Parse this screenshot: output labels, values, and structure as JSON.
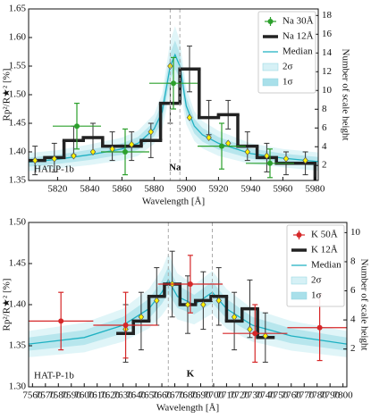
{
  "chart_data": [
    {
      "type": "line",
      "xlabel": "Wavelength [Å]",
      "ylabel": "Rp²/R★² [%]",
      "y2label": "Number of scale height",
      "annotations": [
        "HAT-P-1b",
        "Na"
      ],
      "legend": "upper right",
      "xlim": [
        5802,
        5982
      ],
      "xticks": [
        5820,
        5840,
        5860,
        5880,
        5900,
        5920,
        5940,
        5960,
        5980
      ],
      "ylim": [
        1.35,
        1.65
      ],
      "yticks": [
        1.35,
        {
          "value": 1.4,
          "label": "1.40"
        },
        1.45,
        {
          "value": 1.5,
          "label": "1.50"
        },
        1.55,
        {
          "value": 1.6,
          "label": "1.60"
        },
        1.65
      ],
      "y2lim": [
        0.4,
        18.7
      ],
      "y2ticks": [
        2,
        4,
        6,
        8,
        10,
        12,
        14,
        16,
        18
      ],
      "vlines": [
        5890,
        5896
      ],
      "series": [
        {
          "type": "errorbar",
          "name": "Na 30Å",
          "color": "#2ca02c",
          "x": [
            5832,
            5862,
            5892,
            5922,
            5952
          ],
          "values": [
            1.445,
            1.4,
            1.52,
            1.41,
            1.38
          ],
          "xerr": [
            15,
            15,
            15,
            15,
            15
          ],
          "yerr": [
            0.04,
            0.04,
            0.045,
            0.04,
            0.025
          ]
        },
        {
          "type": "step",
          "name": "Na 12Å",
          "color": "#222222",
          "edges": [
            5800,
            5812,
            5824,
            5836,
            5848,
            5860,
            5872,
            5884,
            5896,
            5908,
            5920,
            5932,
            5944,
            5956,
            5968,
            5980,
            5992
          ],
          "values": [
            1.385,
            1.39,
            1.42,
            1.425,
            1.41,
            1.41,
            1.42,
            1.485,
            1.545,
            1.46,
            1.465,
            1.41,
            1.39,
            1.38,
            1.38,
            1.345
          ],
          "yerr": [
            0.025,
            0.025,
            0.025,
            0.025,
            0.025,
            0.025,
            0.03,
            0.035,
            0.04,
            0.03,
            0.025,
            0.025,
            0.025,
            0.02,
            0.02,
            0.025
          ]
        },
        {
          "type": "line",
          "name": "Median",
          "color": "#1fb1c2",
          "x": [
            5802,
            5820,
            5840,
            5860,
            5870,
            5880,
            5885,
            5890,
            5893,
            5896,
            5900,
            5905,
            5910,
            5920,
            5940,
            5960,
            5982
          ],
          "values": [
            1.382,
            1.387,
            1.395,
            1.405,
            1.415,
            1.44,
            1.47,
            1.55,
            1.57,
            1.55,
            1.48,
            1.445,
            1.43,
            1.415,
            1.397,
            1.389,
            1.383
          ]
        },
        {
          "type": "band",
          "name": "2σ",
          "color": "#d6f1f6",
          "x": [
            5802,
            5820,
            5840,
            5860,
            5870,
            5880,
            5885,
            5890,
            5893,
            5896,
            5900,
            5905,
            5910,
            5920,
            5940,
            5960,
            5982
          ],
          "lower": [
            1.366,
            1.371,
            1.377,
            1.385,
            1.393,
            1.414,
            1.438,
            1.506,
            1.52,
            1.506,
            1.448,
            1.419,
            1.406,
            1.393,
            1.379,
            1.373,
            1.367
          ],
          "upper": [
            1.398,
            1.403,
            1.413,
            1.425,
            1.437,
            1.466,
            1.502,
            1.594,
            1.62,
            1.594,
            1.512,
            1.471,
            1.454,
            1.437,
            1.415,
            1.405,
            1.399
          ]
        },
        {
          "type": "band",
          "name": "1σ",
          "color": "#a9e0ea",
          "x": [
            5802,
            5820,
            5840,
            5860,
            5870,
            5880,
            5885,
            5890,
            5893,
            5896,
            5900,
            5905,
            5910,
            5920,
            5940,
            5960,
            5982
          ],
          "lower": [
            1.374,
            1.379,
            1.386,
            1.395,
            1.404,
            1.427,
            1.454,
            1.528,
            1.545,
            1.528,
            1.464,
            1.432,
            1.418,
            1.404,
            1.388,
            1.381,
            1.375
          ],
          "upper": [
            1.39,
            1.395,
            1.404,
            1.415,
            1.426,
            1.453,
            1.486,
            1.572,
            1.595,
            1.572,
            1.496,
            1.458,
            1.442,
            1.426,
            1.406,
            1.397,
            1.391
          ]
        },
        {
          "type": "scatter",
          "color": "#fff200",
          "x": [
            5806,
            5818,
            5830,
            5842,
            5854,
            5866,
            5878,
            5890,
            5902,
            5914,
            5926,
            5938,
            5950,
            5962,
            5974
          ],
          "values": [
            1.385,
            1.388,
            1.393,
            1.4,
            1.405,
            1.413,
            1.435,
            1.55,
            1.46,
            1.425,
            1.415,
            1.4,
            1.393,
            1.388,
            1.385
          ]
        }
      ]
    },
    {
      "type": "line",
      "xlabel": "Wavelength [Å]",
      "ylabel": "Rp²/R★² [%]",
      "y2label": "Number of scale height",
      "annotations": [
        "HAT-P-1b",
        "K"
      ],
      "legend": "upper right",
      "xlim": [
        7557,
        7803
      ],
      "xticks": [
        7560,
        7570,
        7580,
        7590,
        7600,
        7610,
        7620,
        7630,
        7640,
        7650,
        7660,
        7670,
        7680,
        7690,
        7700,
        7710,
        7720,
        7730,
        7740,
        7750,
        7760,
        7770,
        7780,
        7790,
        7800
      ],
      "ylim": [
        1.3,
        1.5
      ],
      "yticks": [
        {
          "value": 1.3,
          "label": "1.30"
        },
        1.35,
        {
          "value": 1.4,
          "label": "1.40"
        },
        1.45,
        {
          "value": 1.5,
          "label": "1.50"
        }
      ],
      "y2lim": [
        -0.6,
        10.7
      ],
      "y2ticks": [
        2,
        4,
        6,
        8,
        10
      ],
      "vlines": [
        7665,
        7699
      ],
      "series": [
        {
          "type": "errorbar",
          "name": "K 50Å",
          "color": "#d62728",
          "x": [
            7582,
            7632,
            7682,
            7732,
            7782
          ],
          "values": [
            1.38,
            1.375,
            1.425,
            1.365,
            1.372
          ],
          "xerr": [
            25,
            25,
            25,
            25,
            25
          ],
          "yerr": [
            0.035,
            0.04,
            0.035,
            0.035,
            0.04
          ]
        },
        {
          "type": "step",
          "name": "K 12Å",
          "color": "#222222",
          "edges": [
            7626,
            7638,
            7650,
            7662,
            7674,
            7686,
            7698,
            7710,
            7722,
            7734,
            7746
          ],
          "values": [
            1.365,
            1.38,
            1.41,
            1.425,
            1.4,
            1.405,
            1.41,
            1.38,
            1.395,
            1.36
          ],
          "yerr": [
            0.035,
            0.035,
            0.035,
            0.04,
            0.035,
            0.035,
            0.035,
            0.035,
            0.035,
            0.03
          ]
        },
        {
          "type": "line",
          "name": "Median",
          "color": "#1fb1c2",
          "x": [
            7557,
            7600,
            7630,
            7650,
            7660,
            7665,
            7672,
            7685,
            7699,
            7710,
            7730,
            7760,
            7803
          ],
          "values": [
            1.352,
            1.36,
            1.375,
            1.395,
            1.415,
            1.43,
            1.41,
            1.4,
            1.415,
            1.395,
            1.375,
            1.362,
            1.352
          ]
        },
        {
          "type": "band",
          "name": "2σ",
          "color": "#d6f1f6",
          "x": [
            7557,
            7600,
            7630,
            7650,
            7660,
            7665,
            7672,
            7685,
            7699,
            7710,
            7730,
            7760,
            7803
          ],
          "lower": [
            1.336,
            1.342,
            1.355,
            1.371,
            1.387,
            1.398,
            1.382,
            1.376,
            1.389,
            1.371,
            1.355,
            1.344,
            1.336
          ],
          "upper": [
            1.368,
            1.378,
            1.395,
            1.419,
            1.443,
            1.462,
            1.438,
            1.424,
            1.441,
            1.419,
            1.395,
            1.38,
            1.368
          ]
        },
        {
          "type": "band",
          "name": "1σ",
          "color": "#a9e0ea",
          "x": [
            7557,
            7600,
            7630,
            7650,
            7660,
            7665,
            7672,
            7685,
            7699,
            7710,
            7730,
            7760,
            7803
          ],
          "lower": [
            1.344,
            1.351,
            1.365,
            1.383,
            1.401,
            1.414,
            1.396,
            1.388,
            1.402,
            1.383,
            1.365,
            1.353,
            1.344
          ],
          "upper": [
            1.36,
            1.369,
            1.385,
            1.407,
            1.429,
            1.446,
            1.424,
            1.412,
            1.428,
            1.407,
            1.385,
            1.371,
            1.36
          ]
        },
        {
          "type": "scatter",
          "color": "#fff200",
          "x": [
            7632,
            7644,
            7656,
            7668,
            7680,
            7692,
            7704,
            7716,
            7728,
            7740
          ],
          "values": [
            1.37,
            1.385,
            1.405,
            1.425,
            1.4,
            1.4,
            1.405,
            1.385,
            1.37,
            1.362
          ]
        }
      ]
    }
  ]
}
